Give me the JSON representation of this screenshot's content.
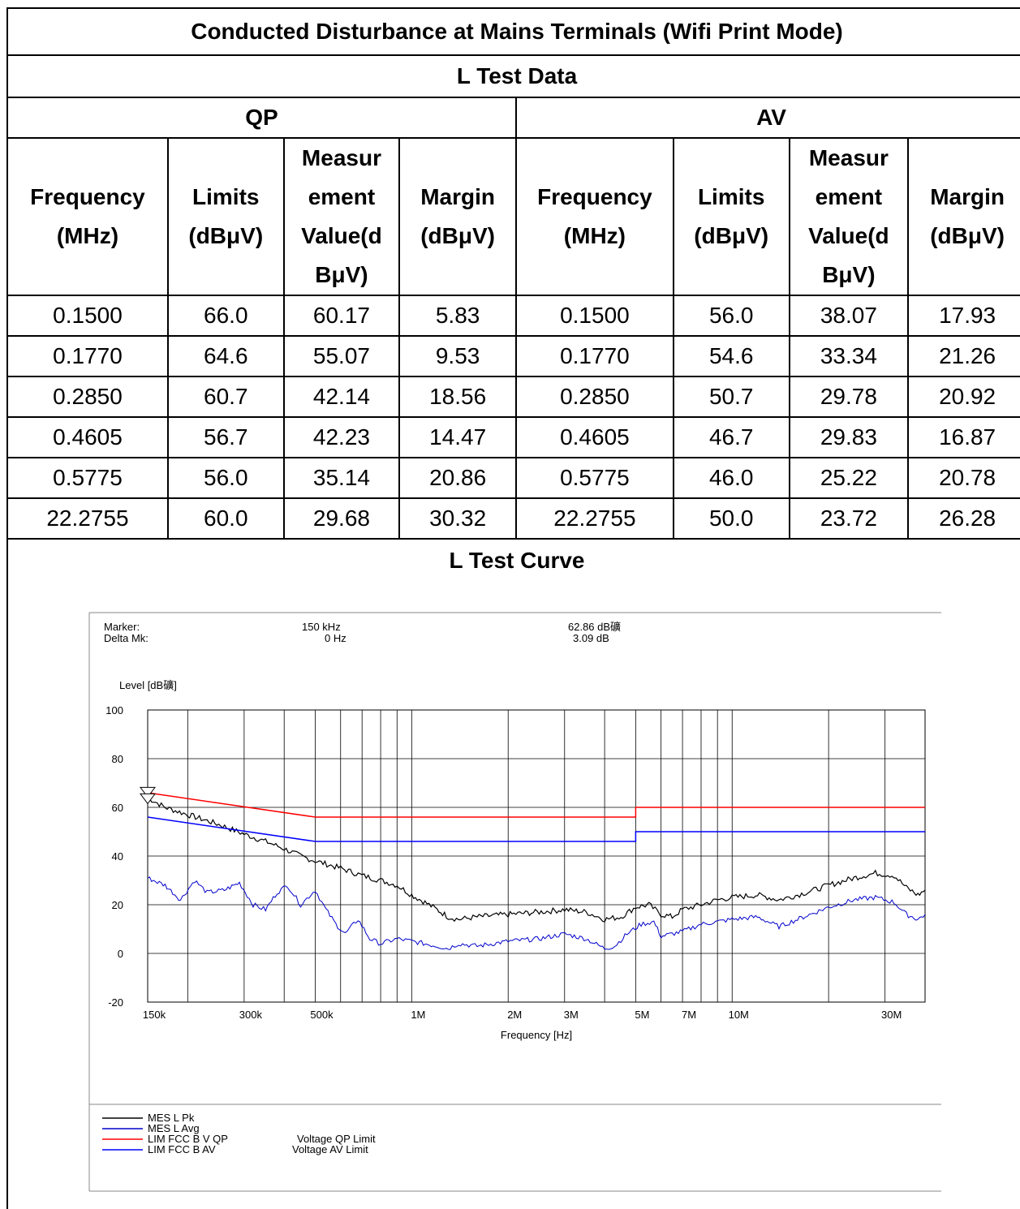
{
  "title": "Conducted Disturbance at Mains Terminals (Wifi Print Mode)",
  "section": "L Test Data",
  "groups": {
    "qp": "QP",
    "av": "AV"
  },
  "headers": {
    "frequency": [
      "Frequency",
      "(MHz)"
    ],
    "limits": [
      "Limits",
      "(dBμV)"
    ],
    "measurement": [
      "Measur",
      "ement",
      "Value(d",
      "BμV)"
    ],
    "margin": [
      "Margin",
      "(dBμV)"
    ]
  },
  "rows": [
    [
      "0.1500",
      "66.0",
      "60.17",
      "5.83",
      "0.1500",
      "56.0",
      "38.07",
      "17.93"
    ],
    [
      "0.1770",
      "64.6",
      "55.07",
      "9.53",
      "0.1770",
      "54.6",
      "33.34",
      "21.26"
    ],
    [
      "0.2850",
      "60.7",
      "42.14",
      "18.56",
      "0.2850",
      "50.7",
      "29.78",
      "20.92"
    ],
    [
      "0.4605",
      "56.7",
      "42.23",
      "14.47",
      "0.4605",
      "46.7",
      "29.83",
      "16.87"
    ],
    [
      "0.5775",
      "56.0",
      "35.14",
      "20.86",
      "0.5775",
      "46.0",
      "25.22",
      "20.78"
    ],
    [
      "22.2755",
      "60.0",
      "29.68",
      "30.32",
      "22.2755",
      "50.0",
      "23.72",
      "26.28"
    ]
  ],
  "curve_title": "L Test Curve",
  "marker": {
    "label": "Marker:",
    "delta_label": "Delta Mk:",
    "freq": "150 kHz",
    "delta_freq": "0 Hz",
    "level": "62.86 dB礦",
    "delta_level": "3.09 dB"
  },
  "chart_data": {
    "type": "line",
    "ylabel": "Level [dB礦]",
    "xlabel": "Frequency [Hz]",
    "x_scale": "log",
    "xlim": [
      150000,
      40000000
    ],
    "ylim": [
      -20,
      100
    ],
    "grid": true,
    "y_ticks": [
      "100",
      "80",
      "60",
      "40",
      "20",
      "0",
      "-20"
    ],
    "x_ticks": [
      {
        "v": 150000,
        "label": "150k"
      },
      {
        "v": 300000,
        "label": "300k"
      },
      {
        "v": 500000,
        "label": "500k"
      },
      {
        "v": 1000000,
        "label": "1M"
      },
      {
        "v": 2000000,
        "label": "2M"
      },
      {
        "v": 3000000,
        "label": "3M"
      },
      {
        "v": 5000000,
        "label": "5M"
      },
      {
        "v": 7000000,
        "label": "7M"
      },
      {
        "v": 10000000,
        "label": "10M"
      },
      {
        "v": 30000000,
        "label": "30M"
      }
    ],
    "x_gridlines": [
      200000,
      300000,
      400000,
      500000,
      600000,
      700000,
      800000,
      900000,
      1000000,
      2000000,
      3000000,
      4000000,
      5000000,
      6000000,
      7000000,
      8000000,
      9000000,
      10000000,
      20000000,
      30000000
    ],
    "series": [
      {
        "name": "MES  L Pk",
        "color": "#000000",
        "points": [
          [
            150000,
            64
          ],
          [
            170000,
            60
          ],
          [
            200000,
            57
          ],
          [
            250000,
            53
          ],
          [
            300000,
            49
          ],
          [
            350000,
            46
          ],
          [
            400000,
            43
          ],
          [
            450000,
            40
          ],
          [
            500000,
            38
          ],
          [
            600000,
            35
          ],
          [
            700000,
            32
          ],
          [
            800000,
            30
          ],
          [
            900000,
            28
          ],
          [
            1000000,
            24
          ],
          [
            1100000,
            21
          ],
          [
            1200000,
            18
          ],
          [
            1300000,
            15
          ],
          [
            1400000,
            14
          ],
          [
            1600000,
            15
          ],
          [
            2000000,
            16
          ],
          [
            2500000,
            17
          ],
          [
            3000000,
            18
          ],
          [
            3500000,
            17
          ],
          [
            4000000,
            14
          ],
          [
            4500000,
            15
          ],
          [
            5000000,
            19
          ],
          [
            5500000,
            20
          ],
          [
            6000000,
            16
          ],
          [
            6500000,
            15
          ],
          [
            7000000,
            18
          ],
          [
            8000000,
            20
          ],
          [
            9000000,
            22
          ],
          [
            10000000,
            23
          ],
          [
            12000000,
            24
          ],
          [
            14000000,
            22
          ],
          [
            16000000,
            24
          ],
          [
            18000000,
            26
          ],
          [
            20000000,
            28
          ],
          [
            24000000,
            31
          ],
          [
            28000000,
            33
          ],
          [
            32000000,
            32
          ],
          [
            35000000,
            27
          ],
          [
            38000000,
            24
          ],
          [
            40000000,
            26
          ]
        ]
      },
      {
        "name": "MES  L Avg",
        "color": "#0000cc",
        "points": [
          [
            150000,
            31
          ],
          [
            170000,
            28
          ],
          [
            190000,
            22
          ],
          [
            210000,
            30
          ],
          [
            230000,
            25
          ],
          [
            260000,
            26
          ],
          [
            290000,
            29
          ],
          [
            320000,
            20
          ],
          [
            350000,
            18
          ],
          [
            380000,
            25
          ],
          [
            410000,
            28
          ],
          [
            450000,
            20
          ],
          [
            500000,
            26
          ],
          [
            540000,
            18
          ],
          [
            580000,
            12
          ],
          [
            620000,
            8
          ],
          [
            680000,
            14
          ],
          [
            740000,
            6
          ],
          [
            800000,
            4
          ],
          [
            900000,
            6
          ],
          [
            1000000,
            5
          ],
          [
            1200000,
            3
          ],
          [
            1300000,
            2
          ],
          [
            1400000,
            4
          ],
          [
            1600000,
            3
          ],
          [
            2000000,
            5
          ],
          [
            2500000,
            6
          ],
          [
            3000000,
            8
          ],
          [
            3500000,
            6
          ],
          [
            4000000,
            2
          ],
          [
            4300000,
            3
          ],
          [
            4700000,
            8
          ],
          [
            5200000,
            12
          ],
          [
            5700000,
            13
          ],
          [
            6000000,
            7
          ],
          [
            6500000,
            8
          ],
          [
            7000000,
            9
          ],
          [
            8000000,
            12
          ],
          [
            9000000,
            13
          ],
          [
            10000000,
            14
          ],
          [
            12000000,
            15
          ],
          [
            14000000,
            11
          ],
          [
            16000000,
            14
          ],
          [
            20000000,
            19
          ],
          [
            24000000,
            22
          ],
          [
            28000000,
            23
          ],
          [
            32000000,
            21
          ],
          [
            35000000,
            16
          ],
          [
            38000000,
            14
          ],
          [
            40000000,
            16
          ]
        ]
      },
      {
        "name": "LIM  FCC  B V QP",
        "description": "Voltage QP Limit",
        "color": "#ff0000",
        "points": [
          [
            150000,
            66
          ],
          [
            500000,
            56
          ],
          [
            5000000,
            56
          ],
          [
            5000000,
            60
          ],
          [
            40000000,
            60
          ]
        ]
      },
      {
        "name": "LIM  FCC  B AV",
        "description": "Voltage AV Limit",
        "color": "#0000ff",
        "points": [
          [
            150000,
            56
          ],
          [
            500000,
            46
          ],
          [
            5000000,
            46
          ],
          [
            5000000,
            50
          ],
          [
            40000000,
            50
          ]
        ]
      }
    ]
  }
}
